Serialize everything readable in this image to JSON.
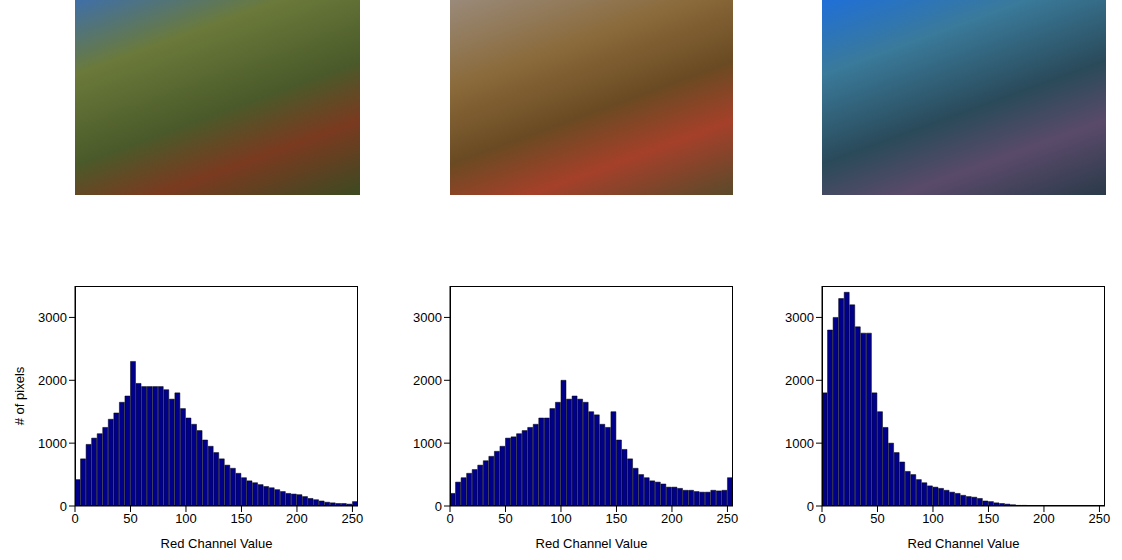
{
  "chart_data": [
    {
      "type": "histogram",
      "x_label": "Red Channel Value",
      "y_label": "# of pixels",
      "color": "#00008b",
      "bins": [
        0,
        5,
        10,
        15,
        20,
        25,
        30,
        35,
        40,
        45,
        50,
        55,
        60,
        65,
        70,
        75,
        80,
        85,
        90,
        95,
        100,
        105,
        110,
        115,
        120,
        125,
        130,
        135,
        140,
        145,
        150,
        155,
        160,
        165,
        170,
        175,
        180,
        185,
        190,
        195,
        200,
        205,
        210,
        215,
        220,
        225,
        230,
        235,
        240,
        245,
        250,
        255
      ],
      "values": [
        420,
        750,
        980,
        1080,
        1150,
        1250,
        1380,
        1480,
        1650,
        1750,
        2300,
        1950,
        1900,
        1900,
        1900,
        1900,
        1850,
        1700,
        1800,
        1550,
        1400,
        1300,
        1200,
        1050,
        950,
        850,
        750,
        650,
        600,
        520,
        450,
        400,
        370,
        340,
        310,
        290,
        260,
        230,
        200,
        190,
        180,
        150,
        120,
        100,
        80,
        60,
        50,
        40,
        40,
        30,
        70
      ],
      "xlim": [
        0,
        255
      ],
      "ylim": [
        0,
        3500
      ],
      "xticks": [
        0,
        50,
        100,
        150,
        200,
        250
      ],
      "yticks": [
        0,
        1000,
        2000,
        3000
      ]
    },
    {
      "type": "histogram",
      "x_label": "Red Channel Value",
      "color": "#00008b",
      "bins": [
        0,
        5,
        10,
        15,
        20,
        25,
        30,
        35,
        40,
        45,
        50,
        55,
        60,
        65,
        70,
        75,
        80,
        85,
        90,
        95,
        100,
        105,
        110,
        115,
        120,
        125,
        130,
        135,
        140,
        145,
        150,
        155,
        160,
        165,
        170,
        175,
        180,
        185,
        190,
        195,
        200,
        205,
        210,
        215,
        220,
        225,
        230,
        235,
        240,
        245,
        250,
        255
      ],
      "values": [
        200,
        380,
        450,
        520,
        580,
        650,
        720,
        790,
        870,
        950,
        1080,
        1100,
        1150,
        1200,
        1250,
        1300,
        1400,
        1400,
        1550,
        1650,
        2000,
        1700,
        1750,
        1700,
        1650,
        1500,
        1450,
        1300,
        1250,
        1500,
        1050,
        900,
        750,
        600,
        500,
        450,
        400,
        380,
        350,
        300,
        300,
        280,
        250,
        250,
        230,
        220,
        220,
        250,
        240,
        250,
        450
      ],
      "xlim": [
        0,
        255
      ],
      "ylim": [
        0,
        3500
      ],
      "xticks": [
        0,
        50,
        100,
        150,
        200,
        250
      ],
      "yticks": [
        0,
        1000,
        2000,
        3000
      ]
    },
    {
      "type": "histogram",
      "x_label": "Red Channel Value",
      "color": "#00008b",
      "bins": [
        0,
        5,
        10,
        15,
        20,
        25,
        30,
        35,
        40,
        45,
        50,
        55,
        60,
        65,
        70,
        75,
        80,
        85,
        90,
        95,
        100,
        105,
        110,
        115,
        120,
        125,
        130,
        135,
        140,
        145,
        150,
        155,
        160,
        165,
        170,
        175,
        180,
        185,
        190,
        195,
        200,
        205,
        210,
        215,
        220,
        225,
        230,
        235,
        240,
        245,
        250,
        255
      ],
      "values": [
        1800,
        2800,
        3000,
        3300,
        3400,
        3200,
        2850,
        2750,
        2750,
        1800,
        1500,
        1250,
        1000,
        850,
        700,
        550,
        500,
        420,
        370,
        320,
        300,
        280,
        250,
        220,
        200,
        170,
        150,
        140,
        120,
        80,
        70,
        50,
        40,
        30,
        20,
        10,
        10,
        5,
        5,
        5,
        0,
        0,
        0,
        0,
        0,
        0,
        0,
        0,
        0,
        0,
        0
      ],
      "xlim": [
        0,
        255
      ],
      "ylim": [
        0,
        3500
      ],
      "xticks": [
        0,
        50,
        100,
        150,
        200,
        250
      ],
      "yticks": [
        0,
        1000,
        2000,
        3000
      ]
    }
  ]
}
